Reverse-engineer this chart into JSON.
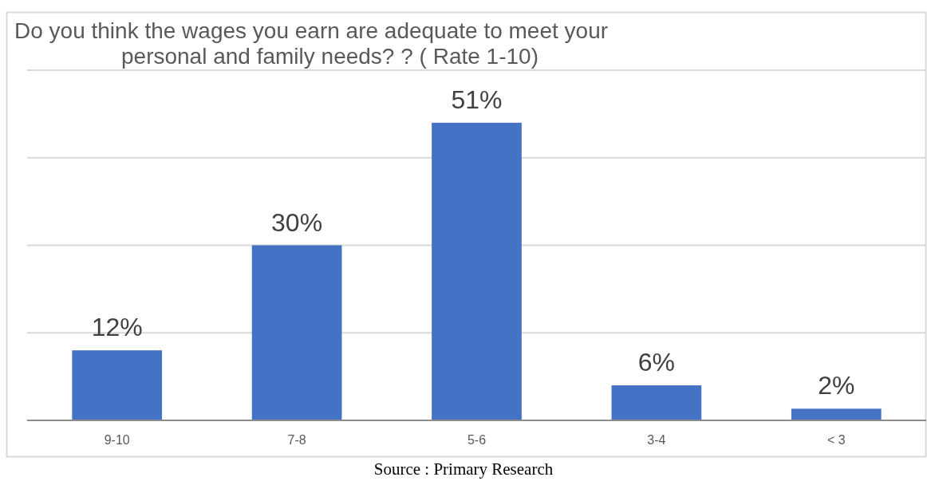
{
  "chart_data": {
    "type": "bar",
    "title": "Do you think the wages you earn are adequate to meet your personal and family needs? ? ( Rate 1-10)",
    "categories": [
      "9-10",
      "7-8",
      "5-6",
      "3-4",
      "< 3"
    ],
    "values": [
      12,
      30,
      51,
      6,
      2
    ],
    "value_labels": [
      "12%",
      "30%",
      "51%",
      "6%",
      "2%"
    ],
    "color": "#4472c4",
    "ylim": [
      0,
      60
    ],
    "yticks": [
      {
        "value": 0,
        "label": null
      },
      {
        "value": 15,
        "label": null
      },
      {
        "value": 30,
        "label": null
      },
      {
        "value": 45,
        "label": null
      },
      {
        "value": 60,
        "label": null
      }
    ],
    "tick_labels": "x",
    "grid": "y",
    "annotations": [
      "Source : Primary Research"
    ]
  }
}
